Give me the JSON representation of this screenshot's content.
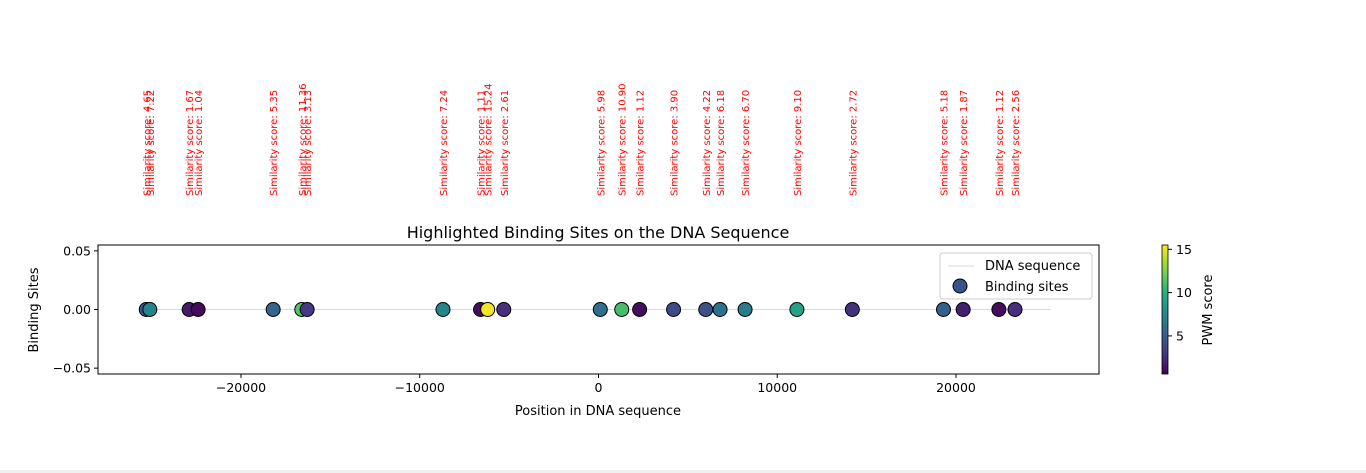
{
  "chart_data": {
    "type": "scatter",
    "title": "Highlighted Binding Sites on the DNA Sequence",
    "xlabel": "Position in DNA sequence",
    "ylabel": "Binding Sites",
    "xlim": [
      -28000,
      28000
    ],
    "ylim": [
      -0.055,
      0.055
    ],
    "xticks": [
      -20000,
      -10000,
      0,
      10000,
      20000
    ],
    "xtick_labels": [
      "−20000",
      "−10000",
      "0",
      "10000",
      "20000"
    ],
    "yticks": [
      0.05,
      0.0,
      -0.05
    ],
    "ytick_labels": [
      "0.05",
      "0.00",
      "−0.05"
    ],
    "grid": false,
    "legend_position": "upper right",
    "legend": [
      {
        "label": "DNA sequence",
        "kind": "line"
      },
      {
        "label": "Binding sites",
        "kind": "marker"
      }
    ],
    "dna_line": {
      "x": [
        -25000,
        25300
      ],
      "y": 0.0,
      "color": "#d9d9d9"
    },
    "annotation_prefix": "Similarity score: ",
    "annotation_color": "#ff0000",
    "colorbar": {
      "label": "PWM score",
      "colormap": "viridis",
      "range": [
        0.6,
        15.5
      ],
      "ticks": [
        5,
        10,
        15
      ],
      "tick_labels": [
        "5",
        "10",
        "15"
      ]
    },
    "points": [
      {
        "x": -25300,
        "y": 0,
        "score": 4.65,
        "label": "Similarity score: 4.65"
      },
      {
        "x": -25100,
        "y": 0,
        "score": 7.22,
        "label": "Similarity score: 7.22"
      },
      {
        "x": -22900,
        "y": 0,
        "score": 1.67,
        "label": "Similarity score: 1.67"
      },
      {
        "x": -22400,
        "y": 0,
        "score": 1.04,
        "label": "Similarity score: 1.04"
      },
      {
        "x": -18200,
        "y": 0,
        "score": 5.35,
        "label": "Similarity score: 5.35"
      },
      {
        "x": -16600,
        "y": 0,
        "score": 11.36,
        "label": "Similarity score: 11.36"
      },
      {
        "x": -16300,
        "y": 0,
        "score": 3.13,
        "label": "Similarity score: 3.13"
      },
      {
        "x": -8700,
        "y": 0,
        "score": 7.24,
        "label": "Similarity score: 7.24"
      },
      {
        "x": -6600,
        "y": 0,
        "score": 1.11,
        "label": "Similarity score: 1.11"
      },
      {
        "x": -6200,
        "y": 0,
        "score": 15.24,
        "label": "Similarity score: 15.24"
      },
      {
        "x": -5300,
        "y": 0,
        "score": 2.61,
        "label": "Similarity score: 2.61"
      },
      {
        "x": 100,
        "y": 0,
        "score": 5.98,
        "label": "Similarity score: 5.98"
      },
      {
        "x": 1300,
        "y": 0,
        "score": 10.9,
        "label": "Similarity score: 10.90"
      },
      {
        "x": 2300,
        "y": 0,
        "score": 1.12,
        "label": "Similarity score: 1.12"
      },
      {
        "x": 4200,
        "y": 0,
        "score": 3.9,
        "label": "Similarity score: 3.90"
      },
      {
        "x": 6000,
        "y": 0,
        "score": 4.22,
        "label": "Similarity score: 4.22"
      },
      {
        "x": 6800,
        "y": 0,
        "score": 6.18,
        "label": "Similarity score: 6.18"
      },
      {
        "x": 8200,
        "y": 0,
        "score": 6.7,
        "label": "Similarity score: 6.70"
      },
      {
        "x": 11100,
        "y": 0,
        "score": 9.1,
        "label": "Similarity score: 9.10"
      },
      {
        "x": 14200,
        "y": 0,
        "score": 2.72,
        "label": "Similarity score: 2.72"
      },
      {
        "x": 19300,
        "y": 0,
        "score": 5.18,
        "label": "Similarity score: 5.18"
      },
      {
        "x": 20400,
        "y": 0,
        "score": 1.87,
        "label": "Similarity score: 1.87"
      },
      {
        "x": 22400,
        "y": 0,
        "score": 1.12,
        "label": "Similarity score: 1.12"
      },
      {
        "x": 23300,
        "y": 0,
        "score": 2.56,
        "label": "Similarity score: 2.56"
      }
    ]
  }
}
